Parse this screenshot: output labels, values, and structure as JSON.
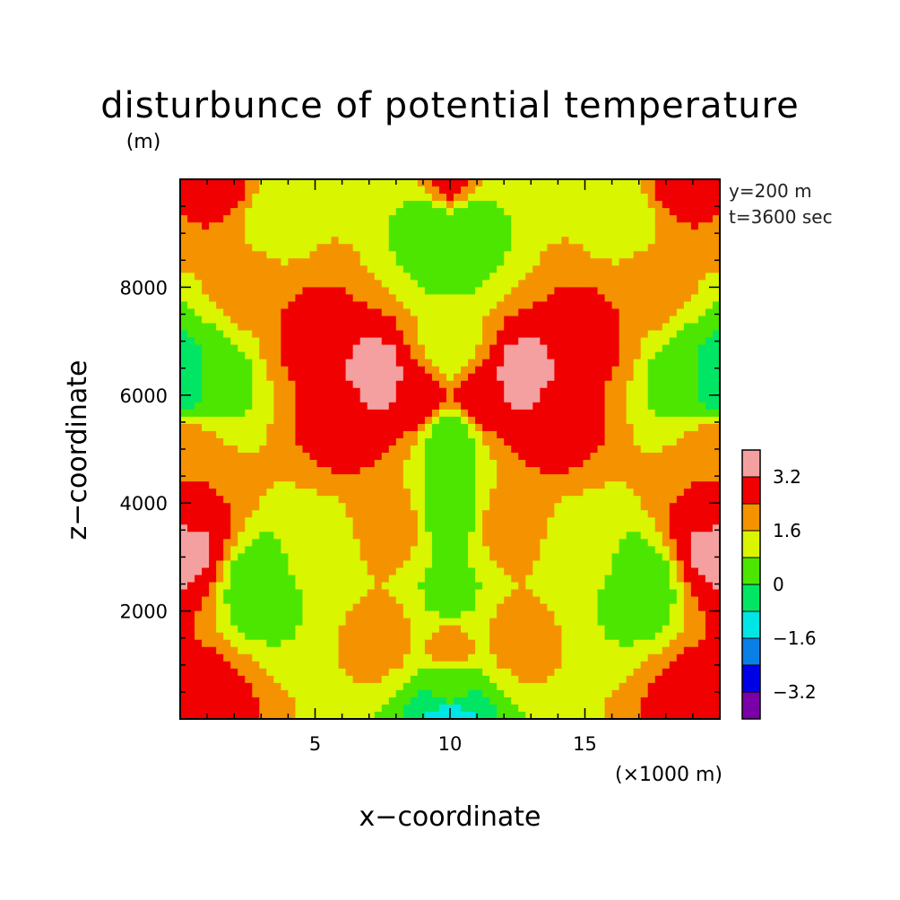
{
  "chart_data": {
    "type": "heatmap",
    "title": "disturbunce of potential temperature",
    "ylabel_unit": "(m)",
    "xlabel": "x−coordinate",
    "xlabel_unit": "(×1000 m)",
    "ylabel": "z−coordinate",
    "annotations": [
      "y=200 m",
      "t=3600 sec"
    ],
    "xlim": [
      0,
      20
    ],
    "ylim": [
      0,
      10000
    ],
    "x_ticks": [
      {
        "value": 5,
        "label": "5"
      },
      {
        "value": 10,
        "label": "10"
      },
      {
        "value": 15,
        "label": "15"
      }
    ],
    "y_ticks": [
      {
        "value": 2000,
        "label": "2000"
      },
      {
        "value": 4000,
        "label": "4000"
      },
      {
        "value": 6000,
        "label": "6000"
      },
      {
        "value": 8000,
        "label": "8000"
      }
    ],
    "colorbar": {
      "levels": [
        -4.0,
        -3.2,
        -2.4,
        -1.6,
        -0.8,
        0,
        0.8,
        1.6,
        2.4,
        3.2,
        4.0
      ],
      "colors": [
        "#7a00a8",
        "#0000e6",
        "#0a7fe6",
        "#00e6e6",
        "#00e664",
        "#4ce600",
        "#d9f500",
        "#f59200",
        "#f00000",
        "#f5a0a0"
      ],
      "tick_labels": [
        {
          "value": -3.2,
          "label": "−3.2"
        },
        {
          "value": -1.6,
          "label": "−1.6"
        },
        {
          "value": 0,
          "label": "0"
        },
        {
          "value": 1.6,
          "label": "1.6"
        },
        {
          "value": 3.2,
          "label": "3.2"
        }
      ]
    },
    "field_features": [
      {
        "x": 10,
        "z": 500,
        "value": 0.2
      },
      {
        "x": 10,
        "z": 50,
        "value": -1.2
      },
      {
        "x": 3,
        "z": 2500,
        "value": 0.3
      },
      {
        "x": 17,
        "z": 2500,
        "value": 0.3
      },
      {
        "x": 10,
        "z": 3900,
        "value": 0.4
      },
      {
        "x": 10,
        "z": 2300,
        "value": 0.6
      },
      {
        "x": 10,
        "z": 5200,
        "value": 0.5
      },
      {
        "x": 0.3,
        "z": 6300,
        "value": -0.5
      },
      {
        "x": 19.7,
        "z": 6300,
        "value": -0.5
      },
      {
        "x": 1.2,
        "z": 6300,
        "value": 0.5
      },
      {
        "x": 18.8,
        "z": 6300,
        "value": 0.5
      },
      {
        "x": 10,
        "z": 8700,
        "value": 0.4
      },
      {
        "x": 9.3,
        "z": 9200,
        "value": 0.5
      },
      {
        "x": 10.7,
        "z": 9200,
        "value": 0.5
      },
      {
        "x": 6.2,
        "z": 5600,
        "value": 2.9
      },
      {
        "x": 13.8,
        "z": 5600,
        "value": 2.9
      },
      {
        "x": 7.3,
        "z": 6300,
        "value": 3.5
      },
      {
        "x": 12.7,
        "z": 6300,
        "value": 3.5
      },
      {
        "x": 8.9,
        "z": 6000,
        "value": 3.0
      },
      {
        "x": 11.1,
        "z": 6000,
        "value": 3.0
      },
      {
        "x": 4.8,
        "z": 7200,
        "value": 2.6
      },
      {
        "x": 15.2,
        "z": 7200,
        "value": 2.6
      },
      {
        "x": 0.2,
        "z": 3200,
        "value": 3.4
      },
      {
        "x": 19.8,
        "z": 3200,
        "value": 3.4
      },
      {
        "x": 0.3,
        "z": 4000,
        "value": 2.5
      },
      {
        "x": 19.7,
        "z": 4000,
        "value": 2.5
      },
      {
        "x": 0.8,
        "z": 300,
        "value": 2.7
      },
      {
        "x": 19.2,
        "z": 300,
        "value": 2.7
      },
      {
        "x": 10,
        "z": 9900,
        "value": 2.6
      },
      {
        "x": 1.5,
        "z": 9900,
        "value": 2.6
      },
      {
        "x": 18.5,
        "z": 9900,
        "value": 2.6
      },
      {
        "x": 7.5,
        "z": 1500,
        "value": 1.8
      },
      {
        "x": 12.5,
        "z": 1500,
        "value": 1.8
      },
      {
        "x": 10,
        "z": 1300,
        "value": 1.8
      },
      {
        "x": 7.8,
        "z": 3600,
        "value": 1.9
      },
      {
        "x": 12.2,
        "z": 3600,
        "value": 1.9
      },
      {
        "x": 0.3,
        "z": 5000,
        "value": 1.9
      },
      {
        "x": 19.7,
        "z": 5000,
        "value": 1.9
      },
      {
        "x": 10,
        "z": 6800,
        "value": 1.0
      },
      {
        "x": 2.5,
        "z": 8000,
        "value": 1.9
      },
      {
        "x": 17.5,
        "z": 8000,
        "value": 1.9
      },
      {
        "x": 5,
        "z": 3000,
        "value": 1.0
      },
      {
        "x": 15,
        "z": 3000,
        "value": 1.0
      },
      {
        "x": 3.5,
        "z": 9300,
        "value": 1.2
      },
      {
        "x": 16.5,
        "z": 9300,
        "value": 1.2
      }
    ]
  }
}
